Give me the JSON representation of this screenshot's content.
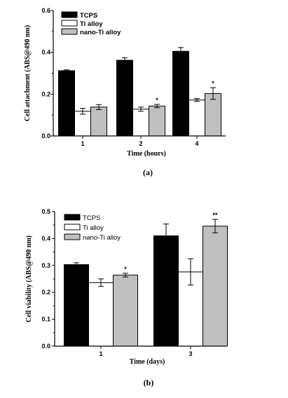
{
  "chart_data": [
    {
      "type": "bar",
      "panel_label": "(a)",
      "categories": [
        "1",
        "2",
        "4"
      ],
      "xlabel": "Time (hours)",
      "ylabel": "Cell attachment (ABS@490 nm)",
      "ylim": [
        0,
        0.6
      ],
      "yticks": [
        "0.0",
        "0.2",
        "0.4",
        "0.6"
      ],
      "ytick_values": [
        0,
        0.2,
        0.4,
        0.6
      ],
      "legend_bold": true,
      "legend_placement": "top-left",
      "series": [
        {
          "name": "TCPS",
          "color": "#000000",
          "values": [
            0.312,
            0.362,
            0.405
          ],
          "errors": [
            0.004,
            0.012,
            0.018
          ],
          "sig": [
            "",
            "",
            ""
          ]
        },
        {
          "name": "Ti alloy",
          "color": "#ffffff",
          "values": [
            0.118,
            0.128,
            0.172
          ],
          "errors": [
            0.014,
            0.01,
            0.007
          ],
          "sig": [
            "",
            "",
            ""
          ]
        },
        {
          "name": "nano-Ti alloy",
          "color": "#c0c0c0",
          "values": [
            0.138,
            0.143,
            0.203
          ],
          "errors": [
            0.012,
            0.008,
            0.028
          ],
          "sig": [
            "",
            "*",
            "*"
          ]
        }
      ]
    },
    {
      "type": "bar",
      "panel_label": "(b)",
      "categories": [
        "1",
        "3"
      ],
      "xlabel": "Time (days)",
      "ylabel": "Cell viability (ABS@490 nm)",
      "ylim": [
        0,
        0.5
      ],
      "yticks": [
        "0.0",
        "0.1",
        "0.2",
        "0.3",
        "0.4",
        "0.5"
      ],
      "ytick_values": [
        0,
        0.1,
        0.2,
        0.3,
        0.4,
        0.5
      ],
      "legend_bold": false,
      "legend_placement": "top-left",
      "series": [
        {
          "name": "TCPS",
          "color": "#000000",
          "values": [
            0.303,
            0.41
          ],
          "errors": [
            0.007,
            0.044
          ],
          "sig": [
            "",
            ""
          ]
        },
        {
          "name": "Ti alloy",
          "color": "#ffffff",
          "values": [
            0.236,
            0.276
          ],
          "errors": [
            0.014,
            0.049
          ],
          "sig": [
            "",
            ""
          ]
        },
        {
          "name": "nano-Ti alloy",
          "color": "#c0c0c0",
          "values": [
            0.264,
            0.446
          ],
          "errors": [
            0.007,
            0.025
          ],
          "sig": [
            "*",
            "**"
          ]
        }
      ]
    }
  ]
}
